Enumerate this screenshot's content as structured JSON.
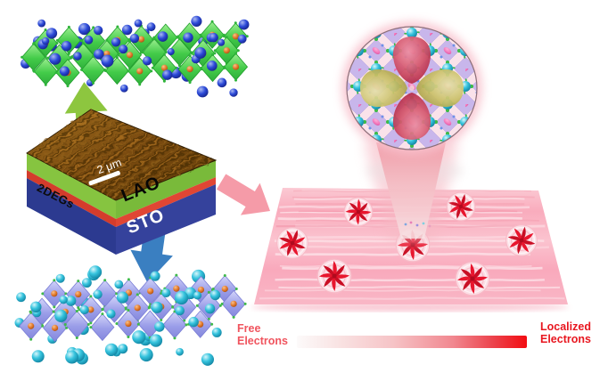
{
  "figure": {
    "sample_box": {
      "layer_2deg": "2DEGs",
      "layer_lao": "LAO",
      "layer_sto": "STO",
      "scale_bar": "2 μm"
    },
    "legend": {
      "free_line1": "Free",
      "free_line2": "Electrons",
      "localized_line1": "Localized",
      "localized_line2": "Electrons"
    }
  },
  "colors": {
    "background": "#FFFFFF",
    "arrow_green": "#8DC63F",
    "arrow_blue": "#3A7FC1",
    "arrow_pink": "#F59BA8",
    "lao_layer_green_left": "#86C440",
    "lao_layer_green_right": "#79BA3A",
    "two_deg_layer_red_left": "#D43C2C",
    "two_deg_layer_red_right": "#E04634",
    "sto_layer_blue_left": "#2C3A90",
    "sto_layer_blue_right": "#35429C",
    "top_lattice_octahedra": "#44CA4A",
    "top_lattice_atoms_blue": "#2B49D8",
    "bottom_lattice_octahedra": "#9B9EE9",
    "bottom_lattice_atoms_teal": "#1FAECB",
    "b_site_atoms_orange": "#E2782A",
    "orbital_lobe_red": "#C72F4B",
    "orbital_lobe_yellow": "#BFB458",
    "inset_background_pink": "#FAE2EA",
    "inset_diamond_lavender": "#C8B6EB",
    "surface_pink": "#F9AEBE",
    "vortex_red": "#E8162E",
    "free_label_red": "#F0545E",
    "localized_label_red": "#E8161F",
    "gradient_start": "#FCFAFA",
    "gradient_end": "#F30D12",
    "afm_brown": "#7B4B10",
    "scalebar_white": "#FFFFFF"
  }
}
